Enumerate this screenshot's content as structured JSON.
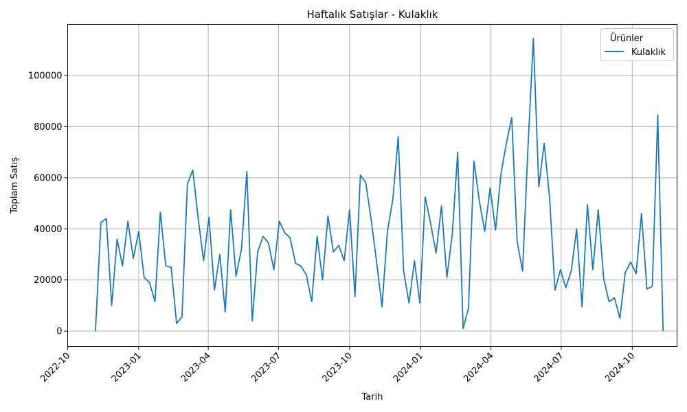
{
  "chart_data": {
    "type": "line",
    "title": "Haftalık Satışlar - Kulaklık",
    "xlabel": "Tarih",
    "ylabel": "Toplam Satış",
    "xlim": [
      "2022-10-01",
      "2024-11-28"
    ],
    "ylim": [
      -6000,
      120000
    ],
    "x_ticks": [
      "2022-10",
      "2023-01",
      "2023-04",
      "2023-07",
      "2023-10",
      "2024-01",
      "2024-04",
      "2024-07",
      "2024-10"
    ],
    "y_ticks": [
      0,
      20000,
      40000,
      60000,
      80000,
      100000
    ],
    "grid": true,
    "legend": {
      "title": "Ürünler",
      "position": "top-right"
    },
    "series": [
      {
        "name": "Kulaklık",
        "color": "#1f77b4",
        "x": [
          "2022-11-06",
          "2022-11-13",
          "2022-11-20",
          "2022-11-27",
          "2022-12-04",
          "2022-12-11",
          "2022-12-18",
          "2022-12-25",
          "2023-01-01",
          "2023-01-08",
          "2023-01-15",
          "2023-01-22",
          "2023-01-29",
          "2023-02-05",
          "2023-02-12",
          "2023-02-19",
          "2023-02-26",
          "2023-03-05",
          "2023-03-12",
          "2023-03-19",
          "2023-03-26",
          "2023-04-02",
          "2023-04-09",
          "2023-04-16",
          "2023-04-23",
          "2023-04-30",
          "2023-05-07",
          "2023-05-14",
          "2023-05-21",
          "2023-05-28",
          "2023-06-04",
          "2023-06-11",
          "2023-06-18",
          "2023-06-25",
          "2023-07-02",
          "2023-07-09",
          "2023-07-16",
          "2023-07-23",
          "2023-07-30",
          "2023-08-06",
          "2023-08-13",
          "2023-08-20",
          "2023-08-27",
          "2023-09-03",
          "2023-09-10",
          "2023-09-17",
          "2023-09-24",
          "2023-10-01",
          "2023-10-08",
          "2023-10-15",
          "2023-10-22",
          "2023-10-29",
          "2023-11-05",
          "2023-11-12",
          "2023-11-19",
          "2023-11-26",
          "2023-12-03",
          "2023-12-10",
          "2023-12-17",
          "2023-12-24",
          "2023-12-31",
          "2024-01-07",
          "2024-01-14",
          "2024-01-21",
          "2024-01-28",
          "2024-02-04",
          "2024-02-11",
          "2024-02-18",
          "2024-02-25",
          "2024-03-03",
          "2024-03-10",
          "2024-03-17",
          "2024-03-24",
          "2024-03-31",
          "2024-04-07",
          "2024-04-14",
          "2024-04-21",
          "2024-04-28",
          "2024-05-05",
          "2024-05-12",
          "2024-05-19",
          "2024-05-26",
          "2024-06-02",
          "2024-06-09",
          "2024-06-16",
          "2024-06-23",
          "2024-06-30",
          "2024-07-07",
          "2024-07-14",
          "2024-07-21",
          "2024-07-28",
          "2024-08-04",
          "2024-08-11",
          "2024-08-18",
          "2024-08-25",
          "2024-09-01",
          "2024-09-08",
          "2024-09-15",
          "2024-09-22",
          "2024-09-29",
          "2024-10-06",
          "2024-10-13",
          "2024-10-20",
          "2024-10-27",
          "2024-11-03",
          "2024-11-10"
        ],
        "values": [
          0,
          42500,
          44000,
          10000,
          36000,
          25500,
          43000,
          28500,
          39000,
          21000,
          19000,
          11500,
          46500,
          25500,
          25000,
          3000,
          5500,
          57500,
          63000,
          44000,
          27500,
          44500,
          16000,
          30000,
          7500,
          47500,
          21500,
          32000,
          62500,
          4000,
          31000,
          37000,
          34500,
          24000,
          43000,
          38500,
          36500,
          26500,
          25500,
          22000,
          11500,
          37000,
          20000,
          45000,
          31000,
          33500,
          27500,
          47500,
          13500,
          61000,
          58000,
          43500,
          27000,
          9500,
          39000,
          51500,
          76000,
          23500,
          11000,
          27500,
          11000,
          52500,
          42000,
          30500,
          49000,
          21000,
          38000,
          70000,
          1000,
          9000,
          66500,
          51000,
          39000,
          56000,
          39500,
          61500,
          73500,
          83500,
          35000,
          23500,
          72000,
          114500,
          56500,
          73500,
          52000,
          16000,
          24000,
          17000,
          23500,
          40000,
          9500,
          49500,
          24000,
          47500,
          20500,
          11500,
          13000,
          5000,
          23000,
          27000,
          22500,
          46000,
          16500,
          17500,
          84500,
          0
        ]
      }
    ]
  }
}
